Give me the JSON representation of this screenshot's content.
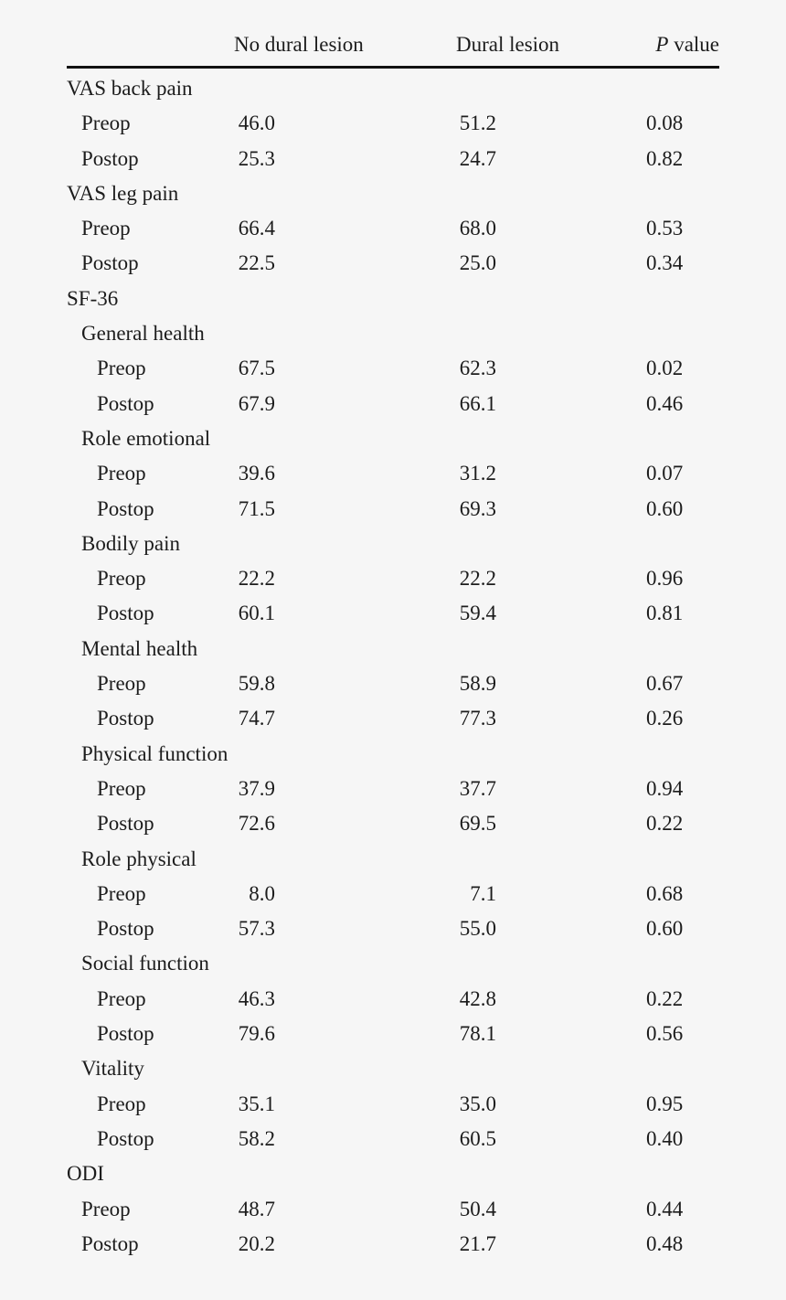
{
  "table": {
    "headers": [
      "",
      "No dural lesion",
      "Dural lesion",
      "P",
      "value"
    ],
    "rows": [
      {
        "label": "VAS back pain",
        "level": 0
      },
      {
        "label": "Preop",
        "level": 1,
        "no_dural": "46.0",
        "dural": "51.2",
        "p": "0.08"
      },
      {
        "label": "Postop",
        "level": 1,
        "no_dural": "25.3",
        "dural": "24.7",
        "p": "0.82"
      },
      {
        "label": "VAS leg pain",
        "level": 0
      },
      {
        "label": "Preop",
        "level": 1,
        "no_dural": "66.4",
        "dural": "68.0",
        "p": "0.53"
      },
      {
        "label": "Postop",
        "level": 1,
        "no_dural": "22.5",
        "dural": "25.0",
        "p": "0.34"
      },
      {
        "label": "SF-36",
        "level": 0
      },
      {
        "label": "General health",
        "level": 1
      },
      {
        "label": "Preop",
        "level": 2,
        "no_dural": "67.5",
        "dural": "62.3",
        "p": "0.02"
      },
      {
        "label": "Postop",
        "level": 2,
        "no_dural": "67.9",
        "dural": "66.1",
        "p": "0.46"
      },
      {
        "label": "Role emotional",
        "level": 1
      },
      {
        "label": "Preop",
        "level": 2,
        "no_dural": "39.6",
        "dural": "31.2",
        "p": "0.07"
      },
      {
        "label": "Postop",
        "level": 2,
        "no_dural": "71.5",
        "dural": "69.3",
        "p": "0.60"
      },
      {
        "label": "Bodily pain",
        "level": 1
      },
      {
        "label": "Preop",
        "level": 2,
        "no_dural": "22.2",
        "dural": "22.2",
        "p": "0.96"
      },
      {
        "label": "Postop",
        "level": 2,
        "no_dural": "60.1",
        "dural": "59.4",
        "p": "0.81"
      },
      {
        "label": "Mental health",
        "level": 1
      },
      {
        "label": "Preop",
        "level": 2,
        "no_dural": "59.8",
        "dural": "58.9",
        "p": "0.67"
      },
      {
        "label": "Postop",
        "level": 2,
        "no_dural": "74.7",
        "dural": "77.3",
        "p": "0.26"
      },
      {
        "label": "Physical function",
        "level": 1
      },
      {
        "label": "Preop",
        "level": 2,
        "no_dural": "37.9",
        "dural": "37.7",
        "p": "0.94"
      },
      {
        "label": "Postop",
        "level": 2,
        "no_dural": "72.6",
        "dural": "69.5",
        "p": "0.22"
      },
      {
        "label": "Role physical",
        "level": 1
      },
      {
        "label": "Preop",
        "level": 2,
        "no_dural": "8.0",
        "dural": "7.1",
        "p": "0.68"
      },
      {
        "label": "Postop",
        "level": 2,
        "no_dural": "57.3",
        "dural": "55.0",
        "p": "0.60"
      },
      {
        "label": "Social function",
        "level": 1
      },
      {
        "label": "Preop",
        "level": 2,
        "no_dural": "46.3",
        "dural": "42.8",
        "p": "0.22"
      },
      {
        "label": "Postop",
        "level": 2,
        "no_dural": "79.6",
        "dural": "78.1",
        "p": "0.56"
      },
      {
        "label": "Vitality",
        "level": 1
      },
      {
        "label": "Preop",
        "level": 2,
        "no_dural": "35.1",
        "dural": "35.0",
        "p": "0.95"
      },
      {
        "label": "Postop",
        "level": 2,
        "no_dural": "58.2",
        "dural": "60.5",
        "p": "0.40"
      },
      {
        "label": "ODI",
        "level": 0
      },
      {
        "label": "Preop",
        "level": 1,
        "no_dural": "48.7",
        "dural": "50.4",
        "p": "0.44"
      },
      {
        "label": "Postop",
        "level": 1,
        "no_dural": "20.2",
        "dural": "21.7",
        "p": "0.48"
      }
    ]
  }
}
